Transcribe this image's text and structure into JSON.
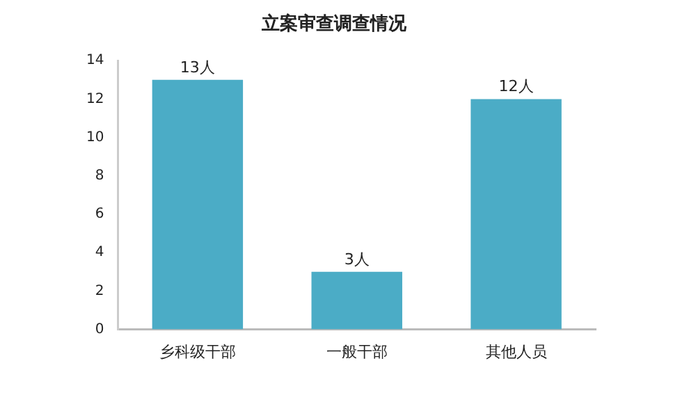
{
  "chart_data": {
    "type": "bar",
    "title": "立案审查调查情况",
    "categories": [
      "乡科级干部",
      "一般干部",
      "其他人员"
    ],
    "values": [
      13,
      3,
      12
    ],
    "color": "#4bacc6",
    "value_labels": [
      "13人",
      "3人",
      "12人"
    ],
    "ylim": [
      0,
      14
    ],
    "yticks": [
      0,
      2,
      4,
      6,
      8,
      10,
      12,
      14
    ],
    "grid": false,
    "legend": false
  }
}
